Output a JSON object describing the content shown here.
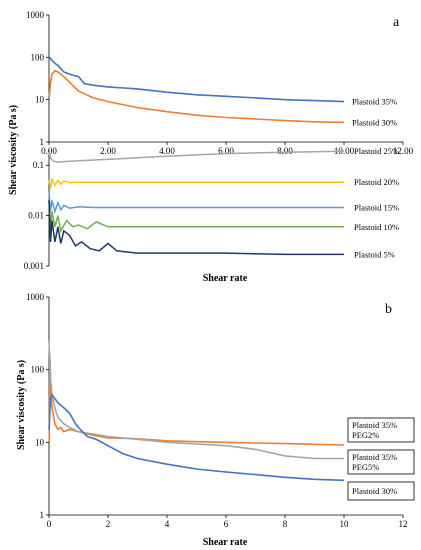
{
  "chart_data": [
    {
      "panel": "a",
      "type": "line",
      "ylabel": "Shear viscosity (Pa s)",
      "xlabel": "Shear rate",
      "xlim": [
        0,
        12
      ],
      "x_ticks": [
        "0.00",
        "2.00",
        "4.00",
        "6.00",
        "8.00",
        "10.00",
        "12.00"
      ],
      "upper": {
        "ylim": [
          1,
          1000
        ],
        "y_ticks": [
          "1",
          "10",
          "100",
          "1000"
        ],
        "series": [
          {
            "name": "Plastoid 35%",
            "color": "#4472C4",
            "x": [
              0.01,
              0.1,
              0.2,
              0.3,
              0.5,
              0.8,
              1.0,
              1.2,
              1.5,
              2.0,
              3.0,
              4.0,
              5.0,
              6.0,
              7.0,
              8.0,
              9.0,
              10.0
            ],
            "y": [
              100,
              85,
              72,
              65,
              45,
              38,
              35,
              24,
              22,
              20,
              18,
              15,
              13,
              12,
              11,
              10,
              9.5,
              9
            ]
          },
          {
            "name": "Plastoid 30%",
            "color": "#ED7D31",
            "x": [
              0.01,
              0.05,
              0.1,
              0.2,
              0.3,
              0.5,
              0.8,
              1.0,
              1.5,
              2.0,
              3.0,
              4.0,
              5.0,
              6.0,
              7.0,
              8.0,
              9.0,
              10.0
            ],
            "y": [
              12,
              25,
              40,
              48,
              45,
              35,
              22,
              16,
              11,
              9,
              6.5,
              5.2,
              4.3,
              3.8,
              3.5,
              3.2,
              3.0,
              2.9
            ]
          }
        ]
      },
      "lower": {
        "ylim": [
          0.001,
          0.2
        ],
        "y_ticks": [
          "0.1",
          "0.01",
          "0.001"
        ],
        "series": [
          {
            "name": "Plastoid 25%",
            "color": "#A5A5A5",
            "x": [
              0.0,
              0.05,
              0.15,
              0.3,
              0.5,
              1.0,
              2.0,
              3.0,
              4.0,
              5.0,
              6.0,
              7.0,
              8.0,
              9.0,
              10.0
            ],
            "y": [
              0.18,
              0.14,
              0.12,
              0.115,
              0.118,
              0.122,
              0.13,
              0.14,
              0.15,
              0.16,
              0.17,
              0.175,
              0.18,
              0.185,
              0.19
            ]
          },
          {
            "name": "Plastoid 20%",
            "color": "#FFC000",
            "x": [
              0.0,
              0.05,
              0.1,
              0.2,
              0.3,
              0.4,
              0.5,
              0.7,
              1.0,
              2.0,
              4.0,
              6.0,
              8.0,
              10.0
            ],
            "y": [
              0.05,
              0.035,
              0.052,
              0.04,
              0.05,
              0.042,
              0.048,
              0.045,
              0.046,
              0.046,
              0.046,
              0.046,
              0.046,
              0.046
            ]
          },
          {
            "name": "Plastoid 15%",
            "color": "#5B9BD5",
            "x": [
              0.0,
              0.05,
              0.1,
              0.2,
              0.3,
              0.4,
              0.5,
              0.7,
              1.0,
              1.5,
              2.0,
              4.0,
              6.0,
              8.0,
              10.0
            ],
            "y": [
              0.03,
              0.012,
              0.02,
              0.012,
              0.018,
              0.013,
              0.016,
              0.014,
              0.015,
              0.0145,
              0.0145,
              0.0145,
              0.0145,
              0.0145,
              0.0145
            ]
          },
          {
            "name": "Plastoid 10%",
            "color": "#70AD47",
            "x": [
              0.0,
              0.05,
              0.1,
              0.2,
              0.3,
              0.4,
              0.6,
              0.8,
              1.0,
              1.3,
              1.6,
              2.0,
              2.5,
              3.0,
              4.0,
              6.0,
              8.0,
              10.0
            ],
            "y": [
              0.02,
              0.006,
              0.012,
              0.006,
              0.01,
              0.005,
              0.008,
              0.006,
              0.0065,
              0.0055,
              0.0075,
              0.006,
              0.006,
              0.006,
              0.006,
              0.006,
              0.006,
              0.006
            ]
          },
          {
            "name": "Plastoid 5%",
            "color": "#1F3864",
            "x": [
              0.0,
              0.05,
              0.1,
              0.2,
              0.3,
              0.4,
              0.5,
              0.7,
              0.9,
              1.1,
              1.4,
              1.7,
              2.0,
              2.3,
              2.6,
              3.0,
              4.0,
              6.0,
              8.0,
              10.0
            ],
            "y": [
              0.02,
              0.003,
              0.008,
              0.003,
              0.006,
              0.0028,
              0.005,
              0.004,
              0.0025,
              0.003,
              0.0022,
              0.002,
              0.0028,
              0.002,
              0.0019,
              0.0018,
              0.0018,
              0.0018,
              0.0017,
              0.0017
            ]
          }
        ]
      }
    },
    {
      "panel": "b",
      "type": "line",
      "ylabel": "Shear viscosity (Pa s)",
      "xlabel": "Shear rate",
      "xlim": [
        0,
        12
      ],
      "ylim": [
        1,
        1000
      ],
      "x_ticks": [
        "0",
        "2",
        "4",
        "6",
        "8",
        "10",
        "12"
      ],
      "y_ticks": [
        "1",
        "10",
        "100",
        "1000"
      ],
      "series": [
        {
          "name": "Plastoid 35% PEG2%",
          "color": "#ED7D31",
          "x": [
            0.01,
            0.03,
            0.06,
            0.1,
            0.2,
            0.3,
            0.4,
            0.5,
            0.7,
            1.0,
            1.5,
            2.0,
            3.0,
            4.0,
            5.0,
            6.0,
            7.0,
            8.0,
            9.0,
            10.0
          ],
          "y": [
            10,
            150,
            60,
            30,
            18,
            15,
            16,
            14,
            15,
            14,
            12.5,
            11.5,
            11.2,
            10.5,
            10.2,
            10,
            9.8,
            9.6,
            9.4,
            9.2
          ]
        },
        {
          "name": "Plastoid 35% PEG5%",
          "color": "#A5A5A5",
          "x": [
            0.0,
            0.05,
            0.1,
            0.2,
            0.3,
            0.5,
            0.7,
            1.0,
            1.5,
            2.0,
            3.0,
            4.0,
            5.0,
            6.0,
            7.0,
            8.0,
            9.0,
            10.0
          ],
          "y": [
            250,
            80,
            45,
            30,
            22,
            18,
            16,
            14,
            13,
            12,
            11,
            10,
            9.5,
            9,
            8,
            6.5,
            6,
            6
          ]
        },
        {
          "name": "Plastoid 30%",
          "color": "#4472C4",
          "x": [
            0.0,
            0.05,
            0.1,
            0.2,
            0.3,
            0.5,
            0.7,
            0.9,
            1.0,
            1.3,
            1.6,
            2.0,
            2.5,
            3.0,
            4.0,
            5.0,
            6.0,
            7.0,
            8.0,
            9.0,
            10.0
          ],
          "y": [
            15,
            40,
            45,
            40,
            35,
            30,
            25,
            18,
            16,
            12,
            11,
            9,
            7,
            6,
            5,
            4.3,
            3.9,
            3.6,
            3.3,
            3.1,
            3
          ]
        }
      ]
    }
  ]
}
